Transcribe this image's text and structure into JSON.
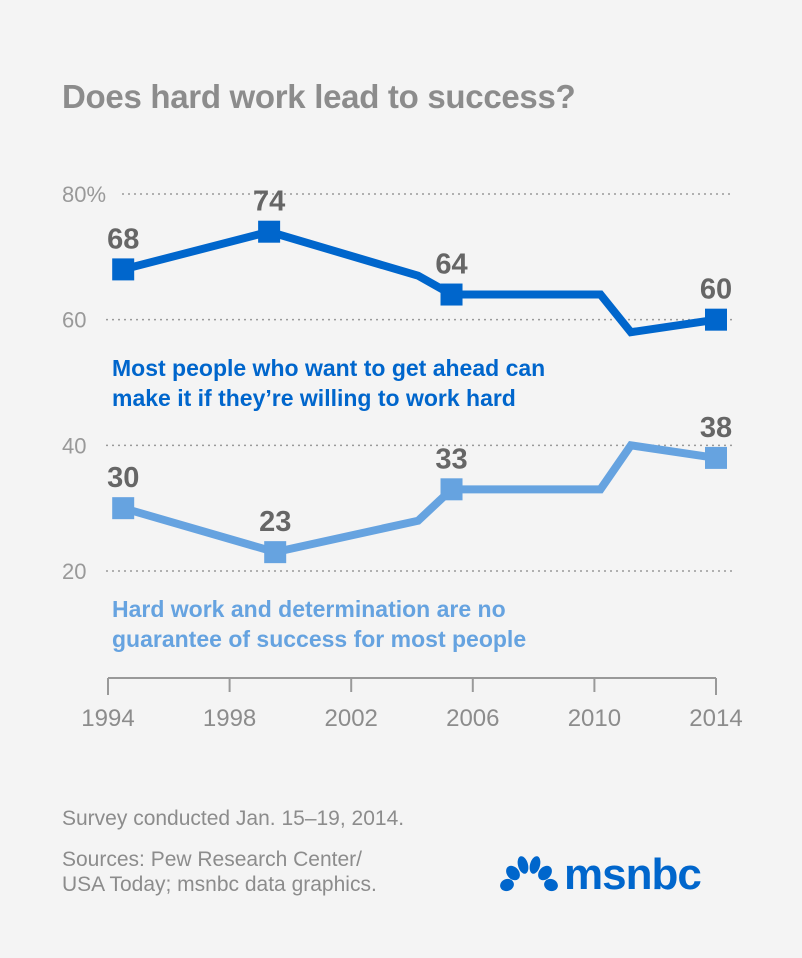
{
  "title": "Does hard work lead to success?",
  "series_labels": {
    "s1_line1": "Most people who want to get ahead can",
    "s1_line2": "make it if they’re willing to work hard",
    "s2_line1": "Hard work and determination are no",
    "s2_line2": "guarantee of success for most people"
  },
  "notes": {
    "survey": "Survey conducted Jan. 15–19, 2014.",
    "sources_line1": "Sources: Pew Research Center/",
    "sources_line2": "USA Today; msnbc data graphics."
  },
  "logo": {
    "text": "msnbc",
    "icon": "peacock-icon"
  },
  "colors": {
    "series1": "#0066cc",
    "series2": "#66a3e0",
    "grid": "#9a9a9a",
    "text": "#666666",
    "axis": "#999999",
    "background": "#f4f4f4"
  },
  "chart_data": {
    "type": "line",
    "title": "Does hard work lead to success?",
    "xlabel": "",
    "ylabel": "",
    "xlim": [
      1994,
      2014
    ],
    "ylim": [
      0,
      80
    ],
    "x_ticks": [
      1994,
      1998,
      2002,
      2006,
      2010,
      2014
    ],
    "x_tick_labels": [
      "1994",
      "1998",
      "2002",
      "2006",
      "2010",
      "2014"
    ],
    "y_ticks": [
      80,
      60,
      40,
      20
    ],
    "y_tick_labels": [
      "80%",
      "60",
      "40",
      "20"
    ],
    "grid": "dotted horizontal",
    "series": [
      {
        "name": "Most people who want to get ahead can make it if they’re willing to work hard",
        "points": [
          {
            "x": 1994.5,
            "y": 68,
            "marker": true,
            "label": "68"
          },
          {
            "x": 1999.3,
            "y": 74,
            "marker": true,
            "label": "74"
          },
          {
            "x": 2004.2,
            "y": 67,
            "marker": false
          },
          {
            "x": 2005.3,
            "y": 64,
            "marker": true,
            "label": "64"
          },
          {
            "x": 2010.2,
            "y": 64,
            "marker": false
          },
          {
            "x": 2011.2,
            "y": 58,
            "marker": false
          },
          {
            "x": 2014,
            "y": 60,
            "marker": true,
            "label": "60"
          }
        ]
      },
      {
        "name": "Hard work and determination are no guarantee of success for most people",
        "points": [
          {
            "x": 1994.5,
            "y": 30,
            "marker": true,
            "label": "30"
          },
          {
            "x": 1999.5,
            "y": 23,
            "marker": true,
            "label": "23"
          },
          {
            "x": 2004.2,
            "y": 28,
            "marker": false
          },
          {
            "x": 2005.3,
            "y": 33,
            "marker": true,
            "label": "33"
          },
          {
            "x": 2010.2,
            "y": 33,
            "marker": false
          },
          {
            "x": 2011.2,
            "y": 40,
            "marker": false
          },
          {
            "x": 2014,
            "y": 38,
            "marker": true,
            "label": "38"
          }
        ]
      }
    ]
  }
}
